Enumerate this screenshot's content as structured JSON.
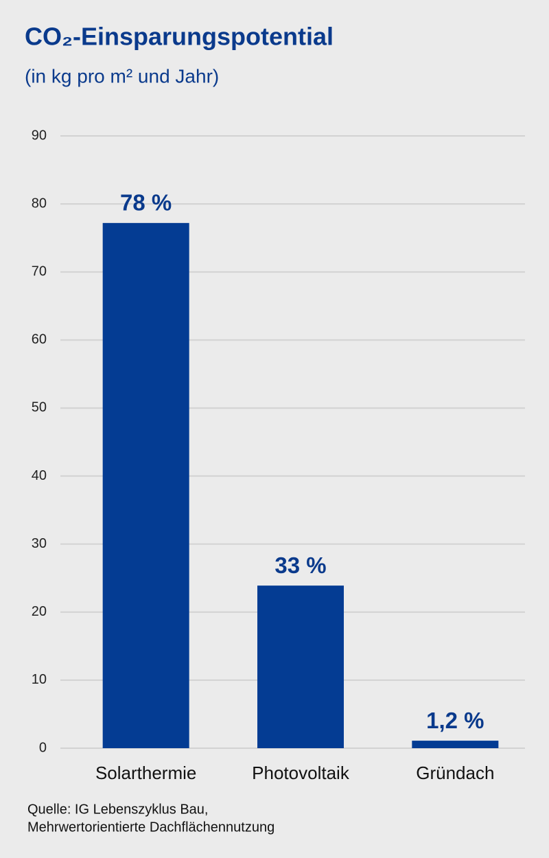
{
  "chart_data": {
    "type": "bar",
    "title": "CO₂-Einsparungspotential",
    "subtitle": "(in kg pro m² und Jahr)",
    "categories": [
      "Solarthermie",
      "Photovoltaik",
      "Gründach"
    ],
    "values": [
      77.2,
      23.9,
      1.1
    ],
    "percent_labels": [
      {
        "value": 78,
        "label": "78 %"
      },
      {
        "value": 33,
        "label": "33 %"
      },
      {
        "value": 1.2,
        "label": "1,2 %"
      }
    ],
    "color": "#043c93",
    "ylim": [
      0,
      90
    ],
    "yticks": [
      0,
      10,
      20,
      30,
      40,
      50,
      60,
      70,
      80,
      90
    ],
    "grid": true,
    "source": [
      "Quelle: IG Lebenszyklus Bau,",
      "Mehrwertorientierte Dachflächennutzung"
    ]
  }
}
